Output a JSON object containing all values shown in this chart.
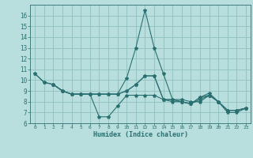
{
  "background_color": "#b8dede",
  "line_color": "#2a7070",
  "grid_color": "#90c0c0",
  "xlabel": "Humidex (Indice chaleur)",
  "xlim": [
    -0.5,
    23.5
  ],
  "ylim": [
    6,
    17
  ],
  "yticks": [
    6,
    7,
    8,
    9,
    10,
    11,
    12,
    13,
    14,
    15,
    16
  ],
  "xticks": [
    0,
    1,
    2,
    3,
    4,
    5,
    6,
    7,
    8,
    9,
    10,
    11,
    12,
    13,
    14,
    15,
    16,
    17,
    18,
    19,
    20,
    21,
    22,
    23
  ],
  "lines": [
    {
      "x": [
        0,
        1,
        2,
        3,
        4,
        5,
        6,
        7,
        8,
        9,
        10,
        11,
        12,
        13,
        14,
        15,
        16,
        17,
        18,
        19,
        20,
        21,
        22,
        23
      ],
      "y": [
        10.6,
        9.8,
        9.6,
        9.0,
        8.7,
        8.7,
        8.7,
        8.7,
        8.7,
        8.7,
        10.2,
        13.0,
        16.5,
        13.0,
        10.6,
        8.2,
        8.2,
        8.0,
        8.0,
        8.6,
        8.0,
        7.2,
        7.2,
        7.4
      ]
    },
    {
      "x": [
        0,
        1,
        2,
        3,
        4,
        5,
        6,
        7,
        8,
        9,
        10,
        11,
        12,
        13,
        14,
        15,
        16,
        17,
        18,
        19,
        20,
        21,
        22,
        23
      ],
      "y": [
        10.6,
        9.8,
        9.6,
        9.0,
        8.7,
        8.7,
        8.7,
        6.6,
        6.6,
        7.6,
        8.6,
        8.6,
        8.6,
        8.6,
        8.2,
        8.2,
        8.0,
        7.8,
        8.4,
        8.6,
        8.0,
        7.2,
        7.2,
        7.4
      ]
    },
    {
      "x": [
        2,
        3,
        4,
        5,
        6,
        7,
        8,
        9,
        10,
        11,
        12,
        13,
        14,
        15,
        16,
        17,
        18,
        19,
        20,
        21,
        22,
        23
      ],
      "y": [
        9.6,
        9.0,
        8.7,
        8.7,
        8.7,
        8.7,
        8.7,
        8.7,
        9.0,
        9.6,
        10.4,
        10.4,
        8.2,
        8.2,
        8.0,
        7.8,
        8.4,
        8.8,
        8.0,
        7.2,
        7.2,
        7.4
      ]
    },
    {
      "x": [
        2,
        3,
        4,
        5,
        6,
        7,
        8,
        9,
        10,
        11,
        12,
        13,
        14,
        15,
        16,
        17,
        18,
        19,
        20,
        21,
        22,
        23
      ],
      "y": [
        9.6,
        9.0,
        8.7,
        8.7,
        8.7,
        8.7,
        8.7,
        8.7,
        9.0,
        9.6,
        10.4,
        10.4,
        8.2,
        8.0,
        8.0,
        7.8,
        8.2,
        8.6,
        8.0,
        7.0,
        7.0,
        7.4
      ]
    }
  ]
}
